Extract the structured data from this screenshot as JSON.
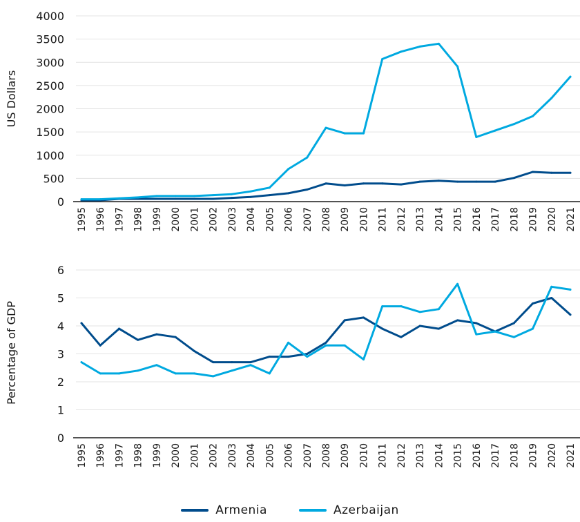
{
  "chart_data": [
    {
      "type": "line",
      "title": "",
      "ylabel": "US Dollars",
      "xlabel": "",
      "ylim": [
        0,
        4000
      ],
      "yticks": [
        0,
        500,
        1000,
        1500,
        2000,
        2500,
        3000,
        3500,
        4000
      ],
      "grid": "horizontal",
      "categories": [
        "1995",
        "1996",
        "1997",
        "1998",
        "1999",
        "2000",
        "2001",
        "2002",
        "2003",
        "2004",
        "2005",
        "2006",
        "2007",
        "2008",
        "2009",
        "2010",
        "2011",
        "2012",
        "2013",
        "2014",
        "2015",
        "2016",
        "2017",
        "2018",
        "2019",
        "2020",
        "2021"
      ],
      "series": [
        {
          "name": "Armenia",
          "color": "#004c8c",
          "values": [
            30,
            30,
            60,
            60,
            60,
            60,
            60,
            60,
            80,
            100,
            140,
            180,
            260,
            390,
            350,
            390,
            390,
            370,
            430,
            450,
            430,
            430,
            430,
            510,
            640,
            620,
            620
          ]
        },
        {
          "name": "Azerbaijan",
          "color": "#00a9e0",
          "values": [
            50,
            50,
            70,
            90,
            120,
            120,
            120,
            140,
            160,
            220,
            300,
            700,
            950,
            1590,
            1470,
            1470,
            3070,
            3230,
            3340,
            3400,
            2910,
            1390,
            1530,
            1670,
            1840,
            2230,
            2690
          ]
        }
      ]
    },
    {
      "type": "line",
      "title": "",
      "ylabel": "Percentage of GDP",
      "xlabel": "",
      "ylim": [
        0,
        6
      ],
      "yticks": [
        0,
        1,
        2,
        3,
        4,
        5,
        6
      ],
      "grid": "horizontal",
      "categories": [
        "1995",
        "1996",
        "1997",
        "1998",
        "1999",
        "2000",
        "2001",
        "2002",
        "2003",
        "2004",
        "2005",
        "2006",
        "2007",
        "2008",
        "2009",
        "2010",
        "2011",
        "2012",
        "2013",
        "2014",
        "2015",
        "2016",
        "2017",
        "2018",
        "2019",
        "2020",
        "2021"
      ],
      "series": [
        {
          "name": "Armenia",
          "color": "#004c8c",
          "values": [
            4.1,
            3.3,
            3.9,
            3.5,
            3.7,
            3.6,
            3.1,
            2.7,
            2.7,
            2.7,
            2.9,
            2.9,
            3.0,
            3.4,
            4.2,
            4.3,
            3.9,
            3.6,
            4.0,
            3.9,
            4.2,
            4.1,
            3.8,
            4.1,
            4.8,
            5.0,
            4.4
          ]
        },
        {
          "name": "Azerbaijan",
          "color": "#00a9e0",
          "values": [
            2.7,
            2.3,
            2.3,
            2.4,
            2.6,
            2.3,
            2.3,
            2.2,
            2.4,
            2.6,
            2.3,
            3.4,
            2.9,
            3.3,
            3.3,
            2.8,
            4.7,
            4.7,
            4.5,
            4.6,
            5.5,
            3.7,
            3.8,
            3.6,
            3.9,
            5.4,
            5.3
          ]
        }
      ]
    }
  ],
  "legend": {
    "placement": "bottom-center",
    "items": [
      {
        "label": "Armenia",
        "color": "#004c8c"
      },
      {
        "label": "Azerbaijan",
        "color": "#00a9e0"
      }
    ]
  }
}
